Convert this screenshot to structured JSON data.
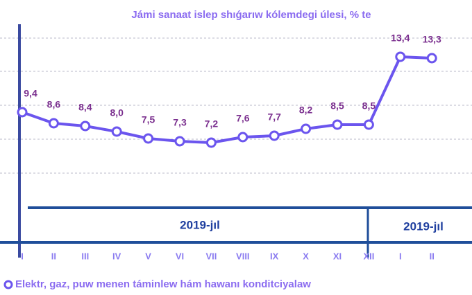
{
  "chart_data": {
    "type": "line",
    "title": "Jámi sanaat islep shıǵarıw kólemdegi úlesi, % te",
    "categories": [
      "I",
      "II",
      "III",
      "IV",
      "V",
      "VI",
      "VII",
      "VIII",
      "IX",
      "X",
      "XI",
      "XII",
      "I",
      "II"
    ],
    "series": [
      {
        "name": "Elektr, gaz, puw menen táminlew hám hawanı konditciyalaw",
        "color": "#6b55ee",
        "values": [
          9.4,
          8.6,
          8.4,
          8.0,
          7.5,
          7.3,
          7.2,
          7.6,
          7.7,
          8.2,
          8.5,
          8.5,
          13.4,
          13.3
        ],
        "value_labels": [
          "9,4",
          "8,6",
          "8,4",
          "8,0",
          "7,5",
          "7,3",
          "7,2",
          "7,6",
          "7,7",
          "8,2",
          "8,5",
          "8,5",
          "13,4",
          "13,3"
        ]
      }
    ],
    "annotations": [
      "2019-jıl",
      "2019-jıl"
    ],
    "ylim": [
      0,
      16
    ]
  }
}
